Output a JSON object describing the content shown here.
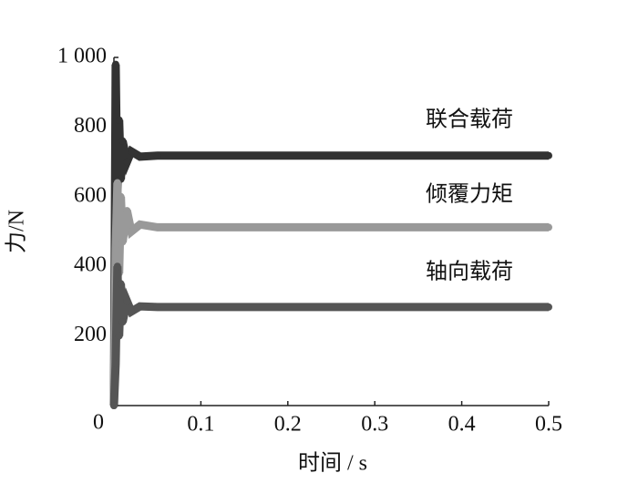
{
  "chart_data": {
    "type": "line",
    "x_label": "时间 / s",
    "y_label": "力/N",
    "xlim": [
      0,
      0.5
    ],
    "ylim": [
      0,
      1000
    ],
    "xticks": [
      0.1,
      0.2,
      0.3,
      0.4,
      0.5
    ],
    "yticks": [
      0,
      200,
      400,
      600,
      800,
      {
        "value": 1000,
        "label": "1 000"
      }
    ],
    "x": [
      0,
      0.002,
      0.004,
      0.006,
      0.008,
      0.01,
      0.015,
      0.02,
      0.03,
      0.05,
      0.5
    ],
    "series": [
      {
        "name": "联合载荷",
        "color": "#333333",
        "values": [
          0,
          980,
          600,
          820,
          650,
          760,
          700,
          730,
          715,
          718,
          718
        ]
      },
      {
        "name": "倾覆力矩",
        "color": "#999999",
        "values": [
          0,
          450,
          640,
          380,
          600,
          470,
          560,
          500,
          520,
          512,
          512
        ]
      },
      {
        "name": "轴向载荷",
        "color": "#555555",
        "values": [
          0,
          120,
          400,
          200,
          350,
          240,
          300,
          270,
          285,
          283,
          283
        ]
      }
    ]
  }
}
